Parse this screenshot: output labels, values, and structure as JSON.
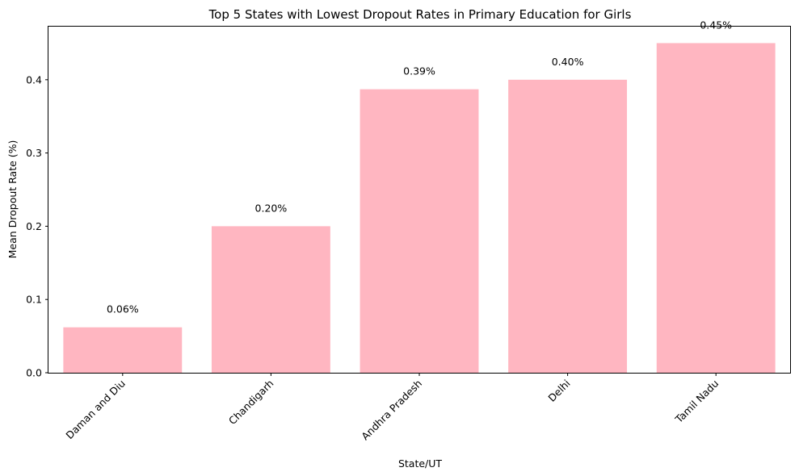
{
  "chart_data": {
    "type": "bar",
    "title": "Top 5 States with Lowest Dropout Rates in Primary Education for Girls",
    "xlabel": "State/UT",
    "ylabel": "Mean Dropout Rate (%)",
    "categories": [
      "Daman and Diu",
      "Chandigarh",
      "Andhra Pradesh",
      "Delhi",
      "Tamil Nadu"
    ],
    "values": [
      0.062,
      0.2,
      0.387,
      0.4,
      0.45
    ],
    "data_labels": [
      "0.06%",
      "0.20%",
      "0.39%",
      "0.40%",
      "0.45%"
    ],
    "yticks": [
      "0.0",
      "0.1",
      "0.2",
      "0.3",
      "0.4"
    ],
    "ylim": [
      0,
      0.4725
    ],
    "bar_color": "#ffb6c1",
    "grid": false,
    "legend": false
  }
}
